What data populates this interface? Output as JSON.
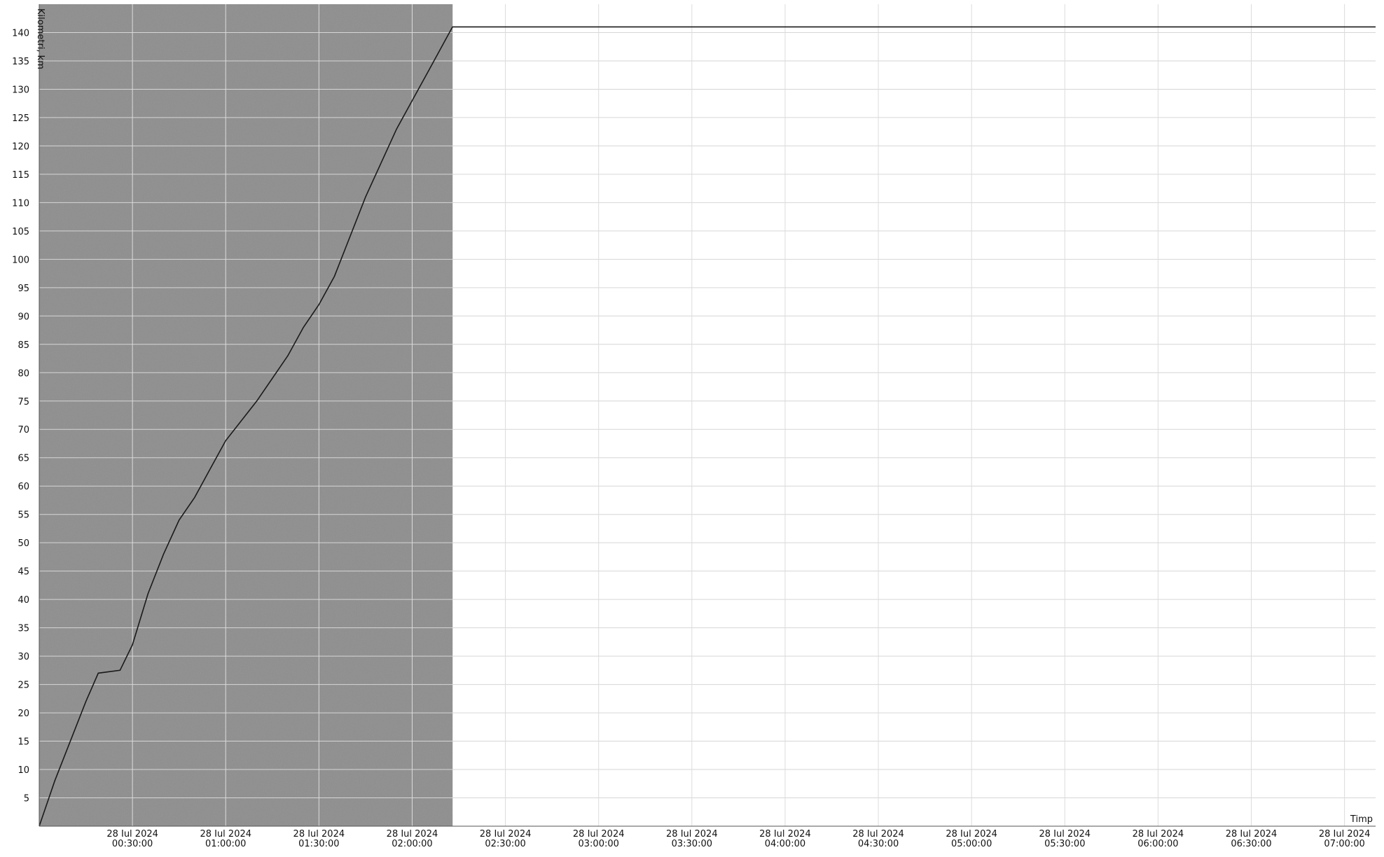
{
  "chart_data": {
    "type": "line",
    "title": "",
    "ylabel": "Kilometri, km",
    "xlabel": "Timp",
    "ylim": [
      0,
      145
    ],
    "xlim": [
      "2024-07-28 00:00:00",
      "2024-07-28 07:10:00"
    ],
    "y_ticks": [
      5,
      10,
      15,
      20,
      25,
      30,
      35,
      40,
      45,
      50,
      55,
      60,
      65,
      70,
      75,
      80,
      85,
      90,
      95,
      100,
      105,
      110,
      115,
      120,
      125,
      130,
      135,
      140
    ],
    "x_ticks": [
      {
        "value": "2024-07-28 00:30:00",
        "line1": "28 Iul 2024",
        "line2": "00:30:00"
      },
      {
        "value": "2024-07-28 01:00:00",
        "line1": "28 Iul 2024",
        "line2": "01:00:00"
      },
      {
        "value": "2024-07-28 01:30:00",
        "line1": "28 Iul 2024",
        "line2": "01:30:00"
      },
      {
        "value": "2024-07-28 02:00:00",
        "line1": "28 Iul 2024",
        "line2": "02:00:00"
      },
      {
        "value": "2024-07-28 02:30:00",
        "line1": "28 Iul 2024",
        "line2": "02:30:00"
      },
      {
        "value": "2024-07-28 03:00:00",
        "line1": "28 Iul 2024",
        "line2": "03:00:00"
      },
      {
        "value": "2024-07-28 03:30:00",
        "line1": "28 Iul 2024",
        "line2": "03:30:00"
      },
      {
        "value": "2024-07-28 04:00:00",
        "line1": "28 Iul 2024",
        "line2": "04:00:00"
      },
      {
        "value": "2024-07-28 04:30:00",
        "line1": "28 Iul 2024",
        "line2": "04:30:00"
      },
      {
        "value": "2024-07-28 05:00:00",
        "line1": "28 Iul 2024",
        "line2": "05:00:00"
      },
      {
        "value": "2024-07-28 05:30:00",
        "line1": "28 Iul 2024",
        "line2": "05:30:00"
      },
      {
        "value": "2024-07-28 06:00:00",
        "line1": "28 Iul 2024",
        "line2": "06:00:00"
      },
      {
        "value": "2024-07-28 06:30:00",
        "line1": "28 Iul 2024",
        "line2": "06:30:00"
      },
      {
        "value": "2024-07-28 07:00:00",
        "line1": "28 Iul 2024",
        "line2": "07:00:00"
      }
    ],
    "grid": true,
    "series": [
      {
        "color": "#1a1a1a",
        "points": [
          [
            "2024-07-28 00:00:00",
            0
          ],
          [
            "2024-07-28 00:05:00",
            8
          ],
          [
            "2024-07-28 00:10:00",
            15
          ],
          [
            "2024-07-28 00:15:00",
            22
          ],
          [
            "2024-07-28 00:19:00",
            27
          ],
          [
            "2024-07-28 00:26:00",
            27.5
          ],
          [
            "2024-07-28 00:30:00",
            32
          ],
          [
            "2024-07-28 00:35:00",
            41
          ],
          [
            "2024-07-28 00:40:00",
            48
          ],
          [
            "2024-07-28 00:45:00",
            54
          ],
          [
            "2024-07-28 00:50:00",
            58
          ],
          [
            "2024-07-28 00:55:00",
            63
          ],
          [
            "2024-07-28 01:00:00",
            68
          ],
          [
            "2024-07-28 01:10:00",
            75
          ],
          [
            "2024-07-28 01:20:00",
            83
          ],
          [
            "2024-07-28 01:25:00",
            88
          ],
          [
            "2024-07-28 01:30:00",
            92
          ],
          [
            "2024-07-28 01:35:00",
            97
          ],
          [
            "2024-07-28 01:40:00",
            104
          ],
          [
            "2024-07-28 01:45:00",
            111
          ],
          [
            "2024-07-28 01:50:00",
            117
          ],
          [
            "2024-07-28 01:55:00",
            123
          ],
          [
            "2024-07-28 02:00:00",
            128
          ],
          [
            "2024-07-28 02:05:00",
            133
          ],
          [
            "2024-07-28 02:10:00",
            138
          ],
          [
            "2024-07-28 02:13:00",
            141
          ],
          [
            "2024-07-28 07:10:00",
            141
          ]
        ]
      }
    ]
  }
}
